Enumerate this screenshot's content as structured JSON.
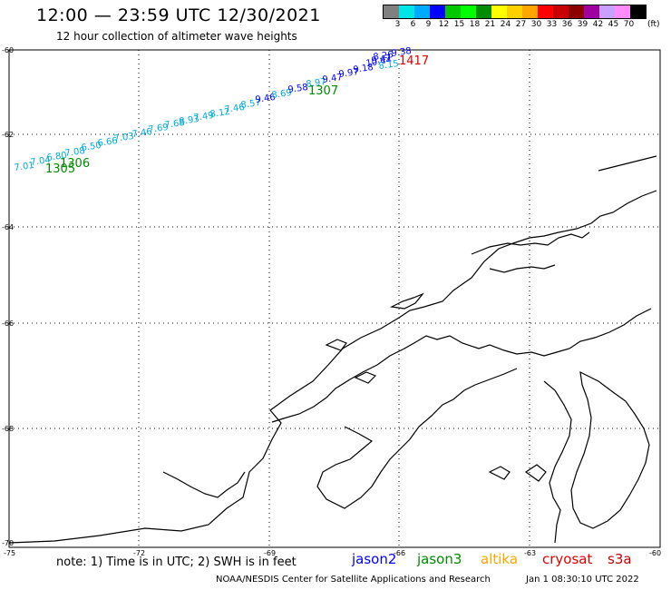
{
  "header": {
    "title": "12:00 — 23:59 UTC 12/30/2021",
    "subtitle": "12 hour collection of altimeter wave heights"
  },
  "colorbar": {
    "colors": [
      "#808080",
      "#00e5e5",
      "#00aaff",
      "#0000ff",
      "#00c800",
      "#00ff00",
      "#008c00",
      "#ffff00",
      "#ffd000",
      "#ffa500",
      "#ff0000",
      "#c80000",
      "#8c0000",
      "#a000a0",
      "#c8a0ff",
      "#ff8cff",
      "#000000"
    ],
    "labels": [
      "3",
      "6",
      "9",
      "12",
      "15",
      "18",
      "21",
      "24",
      "27",
      "30",
      "33",
      "36",
      "39",
      "42",
      "45",
      "70"
    ],
    "unit": "(ft)"
  },
  "axes": {
    "lon_ticks": [
      "-75",
      "-72",
      "-69",
      "-66",
      "-63",
      "-60"
    ],
    "lat_ticks": [
      "-60",
      "-62",
      "-64",
      "-66",
      "-68",
      "-70"
    ]
  },
  "footer": {
    "note": "note:  1) Time is in UTC;  2) SWH is in feet",
    "satellites": [
      {
        "name": "jason2",
        "color": "#0000ff"
      },
      {
        "name": "jason3",
        "color": "#008c00"
      },
      {
        "name": "altika",
        "color": "#ffa500"
      },
      {
        "name": "cryosat",
        "color": "#e00000"
      },
      {
        "name": "s3a",
        "color": "#c80000"
      }
    ],
    "credit": "NOAA/NESDIS Center for Satellite Applications and Research",
    "updated": "Jan  1 08:30:10 UTC 2022"
  },
  "track": {
    "swh_labels": [
      {
        "text": "7.01",
        "color": "#00aadd"
      },
      {
        "text": "7.04",
        "color": "#00aadd"
      },
      {
        "text": "6.80",
        "color": "#00aadd"
      },
      {
        "text": "7.08",
        "color": "#00aadd"
      },
      {
        "text": "6.50",
        "color": "#00aadd"
      },
      {
        "text": "6.66",
        "color": "#00aadd"
      },
      {
        "text": "7.03",
        "color": "#00aadd"
      },
      {
        "text": "7.46",
        "color": "#00aadd"
      },
      {
        "text": "7.69",
        "color": "#00aadd"
      },
      {
        "text": "7.68",
        "color": "#00aadd"
      },
      {
        "text": "8.93",
        "color": "#00aadd"
      },
      {
        "text": "7.49",
        "color": "#00aadd"
      },
      {
        "text": "8.12",
        "color": "#00aadd"
      },
      {
        "text": "7.46",
        "color": "#00aadd"
      },
      {
        "text": "8.57",
        "color": "#00aadd"
      },
      {
        "text": "9.46",
        "color": "#0000ff"
      },
      {
        "text": "8.69",
        "color": "#00aadd"
      },
      {
        "text": "9.58",
        "color": "#0000ff"
      },
      {
        "text": "8.97",
        "color": "#00aadd"
      },
      {
        "text": "9.47",
        "color": "#0000ff"
      },
      {
        "text": "9.97",
        "color": "#0000ff"
      },
      {
        "text": "9.18",
        "color": "#0000ff"
      },
      {
        "text": "10.44",
        "color": "#0000ff"
      },
      {
        "text": "8.15",
        "color": "#00aadd"
      },
      {
        "text": "9.47",
        "color": "#0000ff"
      },
      {
        "text": "8.26",
        "color": "#0000ff"
      },
      {
        "text": "9.38",
        "color": "#0000ff"
      }
    ],
    "time_labels": [
      {
        "text": "1305",
        "color": "#008c00"
      },
      {
        "text": "1306",
        "color": "#008c00"
      },
      {
        "text": "1307",
        "color": "#008c00"
      },
      {
        "text": "1417",
        "color": "#e00000"
      }
    ]
  }
}
